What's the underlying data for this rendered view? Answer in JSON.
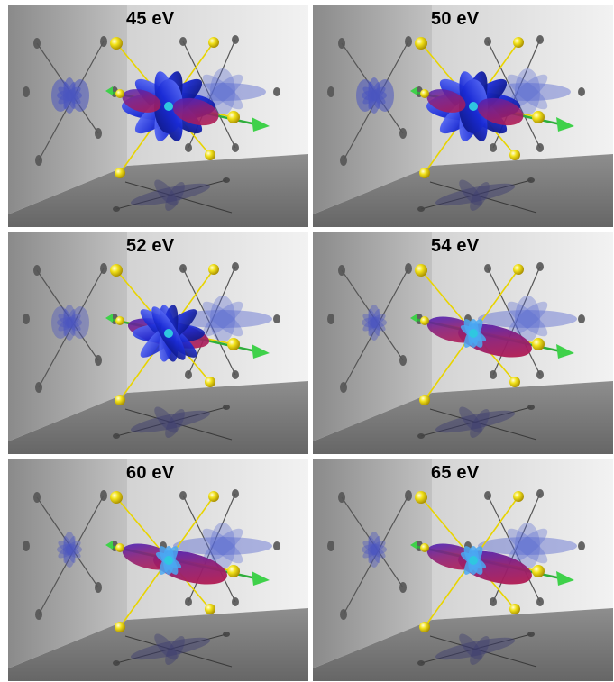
{
  "panels": [
    {
      "label": "45 eV",
      "shape": "blue-lobes"
    },
    {
      "label": "50 eV",
      "shape": "blue-lobes"
    },
    {
      "label": "52 eV",
      "shape": "mixed"
    },
    {
      "label": "54 eV",
      "shape": "red-dominant"
    },
    {
      "label": "60 eV",
      "shape": "red-dominant"
    },
    {
      "label": "65 eV",
      "shape": "red-dominant"
    }
  ]
}
